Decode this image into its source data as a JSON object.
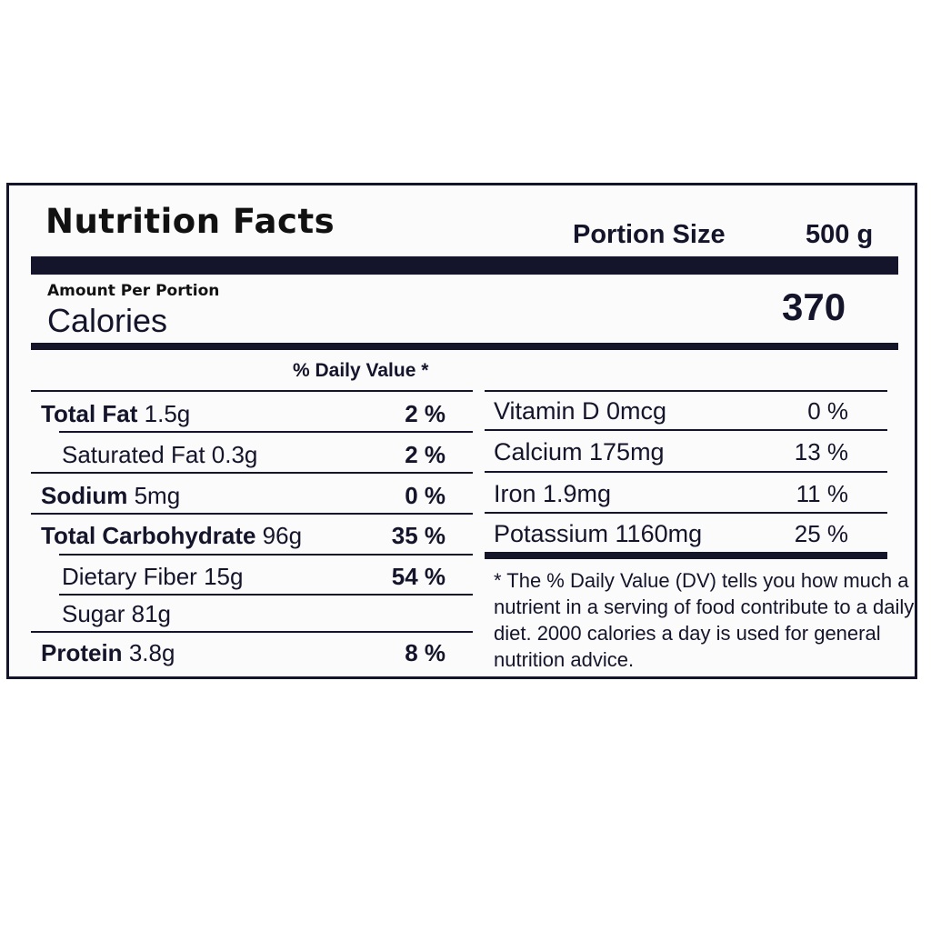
{
  "header": {
    "title": "Nutrition Facts",
    "portion_label": "Portion Size",
    "portion_value": "500 g"
  },
  "calories": {
    "amount_per": "Amount Per Portion",
    "label": "Calories",
    "value": "370"
  },
  "daily_value_header": "% Daily Value *",
  "nutrients": [
    {
      "name": "Total Fat",
      "amount": "1.5g",
      "dv": "2 %"
    },
    {
      "name": "Saturated Fat",
      "amount": "0.3g",
      "dv": "2 %"
    },
    {
      "name": "Sodium",
      "amount": "5mg",
      "dv": "0 %"
    },
    {
      "name": "Total Carbohydrate",
      "amount": "96g",
      "dv": "35 %"
    },
    {
      "name": "Dietary Fiber",
      "amount": "15g",
      "dv": "54 %"
    },
    {
      "name": "Sugar",
      "amount": "81g",
      "dv": ""
    },
    {
      "name": "Protein",
      "amount": "3.8g",
      "dv": "8 %"
    }
  ],
  "vitamins": [
    {
      "label": "Vitamin D 0mcg",
      "dv": "0 %"
    },
    {
      "label": "Calcium 175mg",
      "dv": "13 %"
    },
    {
      "label": "Iron 1.9mg",
      "dv": "11 %"
    },
    {
      "label": "Potassium 1160mg",
      "dv": "25 %"
    }
  ],
  "footnote": "* The % Daily Value (DV) tells you how much a nutrient in a serving of food contribute to a daily diet. 2000 calories a day is used for general nutrition advice."
}
